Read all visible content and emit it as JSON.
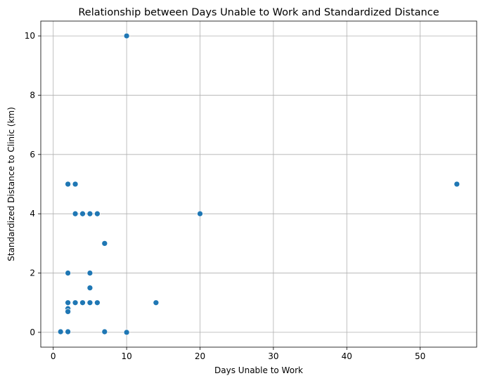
{
  "chart_data": {
    "type": "scatter",
    "title": "Relationship between Days Unable to Work and Standardized Distance",
    "xlabel": "Days Unable to Work",
    "ylabel": "Standardized Distance to Clinic (km)",
    "xlim": [
      -1.7,
      57.7
    ],
    "ylim": [
      -0.5,
      10.5
    ],
    "xticks": [
      0,
      10,
      20,
      30,
      40,
      50
    ],
    "yticks": [
      0,
      2,
      4,
      6,
      8,
      10
    ],
    "grid": true,
    "legend": "none",
    "marker_color": "#1f77b4",
    "points": [
      {
        "x": 10,
        "y": 10
      },
      {
        "x": 2,
        "y": 5
      },
      {
        "x": 3,
        "y": 5
      },
      {
        "x": 55,
        "y": 5
      },
      {
        "x": 3,
        "y": 4
      },
      {
        "x": 4,
        "y": 4
      },
      {
        "x": 5,
        "y": 4
      },
      {
        "x": 6,
        "y": 4
      },
      {
        "x": 20,
        "y": 4
      },
      {
        "x": 7,
        "y": 3
      },
      {
        "x": 2,
        "y": 2
      },
      {
        "x": 5,
        "y": 2
      },
      {
        "x": 5,
        "y": 1.5
      },
      {
        "x": 2,
        "y": 1
      },
      {
        "x": 3,
        "y": 1
      },
      {
        "x": 4,
        "y": 1
      },
      {
        "x": 5,
        "y": 1
      },
      {
        "x": 6,
        "y": 1
      },
      {
        "x": 14,
        "y": 1
      },
      {
        "x": 2,
        "y": 0.8
      },
      {
        "x": 2,
        "y": 0.7
      },
      {
        "x": 1,
        "y": 0.02
      },
      {
        "x": 2,
        "y": 0.02
      },
      {
        "x": 7,
        "y": 0.02
      },
      {
        "x": 10,
        "y": 0
      }
    ]
  }
}
